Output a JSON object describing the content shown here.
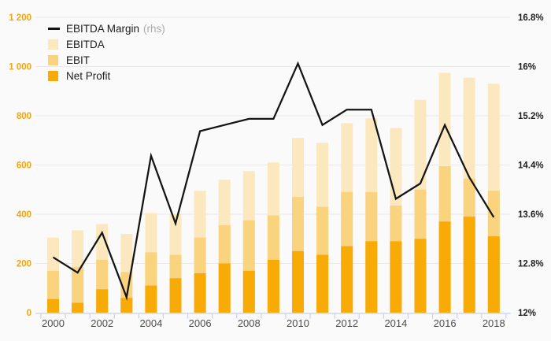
{
  "chart_data": {
    "type": "bar",
    "subtype": "overlapped bars (EBITDA behind EBIT behind Net Profit) with line on right-hand axis",
    "title": "",
    "x": [
      2000,
      2001,
      2002,
      2003,
      2004,
      2005,
      2006,
      2007,
      2008,
      2009,
      2010,
      2011,
      2012,
      2013,
      2014,
      2015,
      2016,
      2017,
      2018
    ],
    "series": [
      {
        "name": "EBITDA Margin",
        "legend_suffix": "(rhs)",
        "type": "line",
        "axis": "right",
        "unit": "%",
        "values": [
          12.9,
          12.65,
          13.3,
          12.25,
          14.55,
          13.45,
          14.95,
          15.05,
          15.15,
          15.15,
          16.05,
          15.05,
          15.3,
          15.3,
          13.85,
          14.1,
          15.05,
          14.2,
          13.55
        ]
      },
      {
        "name": "EBITDA",
        "type": "bar",
        "axis": "left",
        "values": [
          305,
          335,
          360,
          320,
          405,
          400,
          495,
          540,
          575,
          610,
          710,
          690,
          770,
          790,
          750,
          865,
          975,
          955,
          930
        ]
      },
      {
        "name": "EBIT",
        "type": "bar",
        "axis": "left",
        "values": [
          170,
          185,
          215,
          165,
          245,
          235,
          305,
          355,
          375,
          395,
          470,
          430,
          490,
          490,
          435,
          500,
          595,
          545,
          495
        ]
      },
      {
        "name": "Net Profit",
        "type": "bar",
        "axis": "left",
        "values": [
          55,
          40,
          95,
          60,
          110,
          140,
          160,
          200,
          170,
          215,
          250,
          235,
          270,
          290,
          290,
          300,
          370,
          390,
          310
        ]
      }
    ],
    "left_axis": {
      "range": [
        0,
        1200
      ],
      "step": 200,
      "tick_labels": [
        "0",
        "200",
        "400",
        "600",
        "800",
        "1 000",
        "1 200"
      ]
    },
    "right_axis": {
      "range": [
        12,
        16.8
      ],
      "step": 0.8,
      "tick_labels": [
        "12%",
        "12.8%",
        "13.6%",
        "14.4%",
        "15.2%",
        "16%",
        "16.8%"
      ]
    },
    "x_axis": {
      "tick_labels": [
        "2000",
        "2002",
        "2004",
        "2006",
        "2008",
        "2010",
        "2012",
        "2014",
        "2016",
        "2018"
      ],
      "labeled_every": 2
    },
    "grid": "horizontal",
    "legend": {
      "position": "top-left",
      "items": [
        {
          "label": "EBITDA Margin",
          "suffix": "(rhs)"
        },
        {
          "label": "EBITDA"
        },
        {
          "label": "EBIT"
        },
        {
          "label": "Net Profit"
        }
      ]
    }
  },
  "colors": {
    "background": "#FAFAFA",
    "gridline": "#E8E8E8",
    "axis_line": "#C7D2E8",
    "left_axis_labels": "#F2A50C",
    "right_axis_labels": "#1F1F1F",
    "x_axis_labels": "#4D4D4D",
    "ebitda": "#FCE8BE",
    "ebit": "#FAD37E",
    "net_profit": "#F8AB07",
    "margin_line": "#141414",
    "legend_text": "#1C1C1C",
    "legend_rhs": "#ABABAB"
  }
}
